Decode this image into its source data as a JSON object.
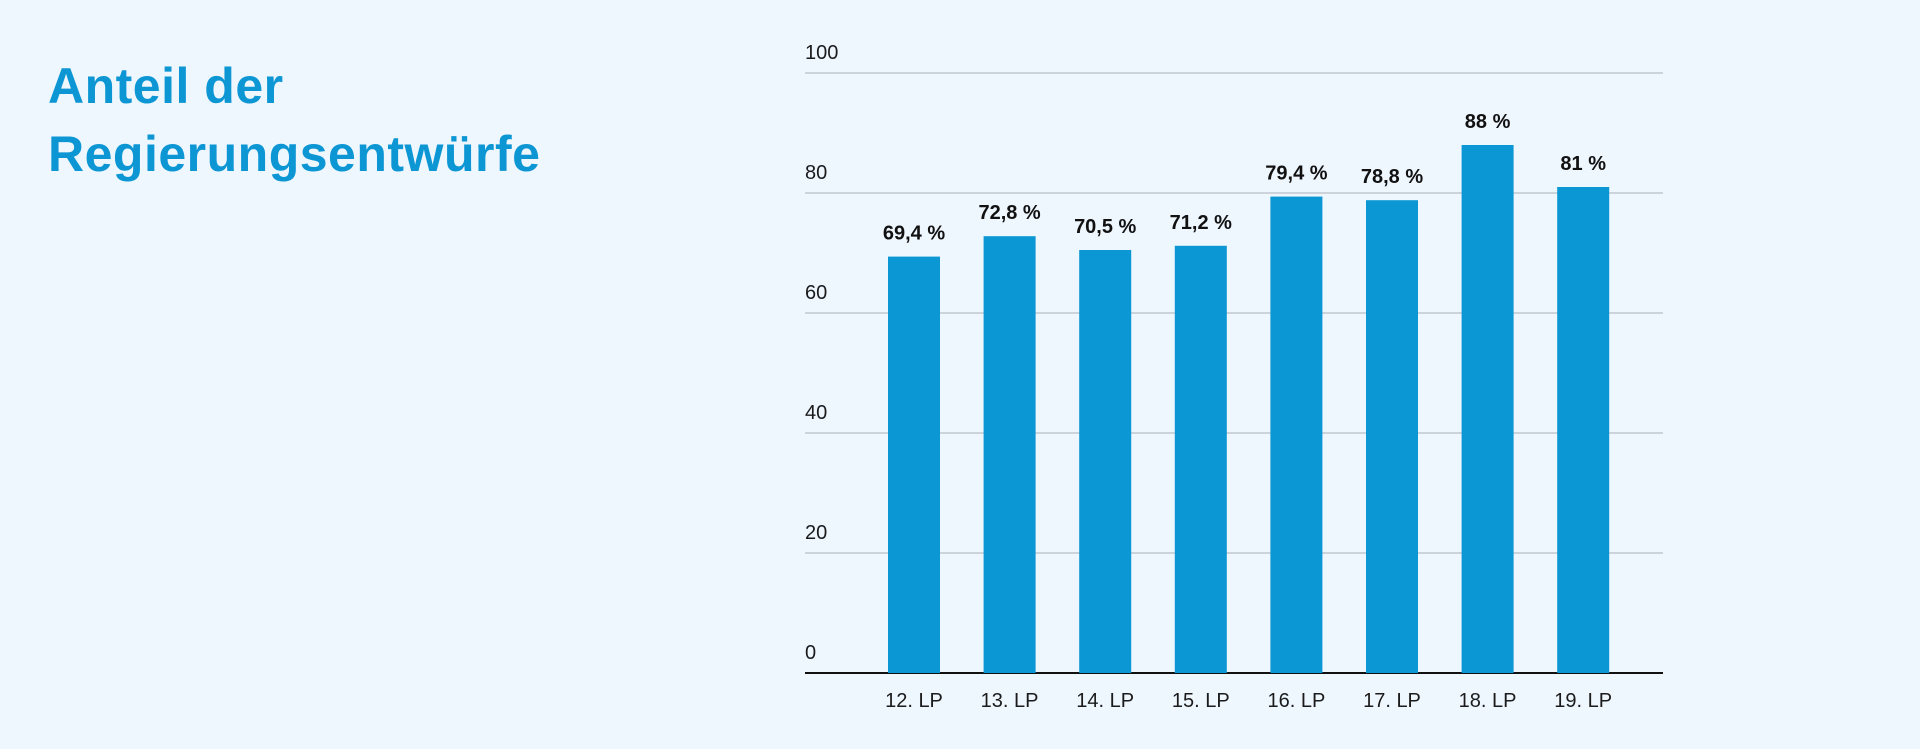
{
  "colors": {
    "background": "#eef6fe",
    "bar": "#0a97d4",
    "title": "#0c96d3",
    "gridline": "#b9bec4",
    "axis": "#111111"
  },
  "chart_data": {
    "type": "bar",
    "title": "Anteil der Regierungsentwürfe",
    "categories": [
      "12. LP",
      "13. LP",
      "14. LP",
      "15. LP",
      "16. LP",
      "17. LP",
      "18. LP",
      "19. LP"
    ],
    "values": [
      69.4,
      72.8,
      70.5,
      71.2,
      79.4,
      78.8,
      88,
      81
    ],
    "data_labels": [
      "69,4 %",
      "72,8 %",
      "70,5 %",
      "71,2 %",
      "79,4 %",
      "78,8 %",
      "88 %",
      "81 %"
    ],
    "yticks": [
      "0",
      "20",
      "40",
      "60",
      "80",
      "100"
    ],
    "ylim": [
      0,
      100
    ],
    "xlabel": "",
    "ylabel": "",
    "grid": true,
    "legend": "none"
  }
}
